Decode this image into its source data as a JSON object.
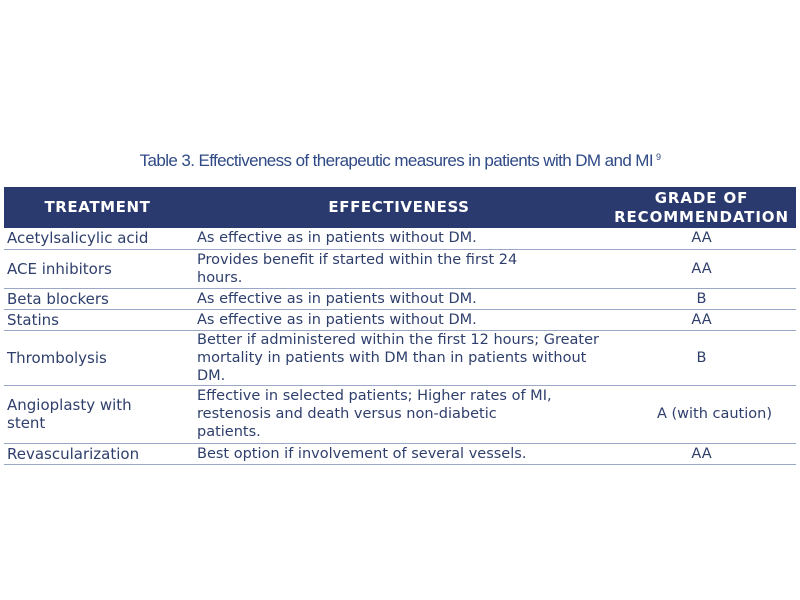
{
  "caption": {
    "text": "Table 3. Effectiveness of therapeutic measures in patients with DM and MI",
    "reference": "9"
  },
  "colors": {
    "header_bg": "#2a3a6e",
    "header_text": "#ffffff",
    "body_text": "#2f3f6c",
    "caption_text": "#2f4a86",
    "row_rule": "#9aa7c7"
  },
  "table": {
    "headers": {
      "treatment": "TREATMENT",
      "effectiveness": "EFFECTIVENESS",
      "grade": "GRADE OF\nRECOMMENDATION"
    },
    "rows": [
      {
        "treatment": "Acetylsalicylic acid",
        "effectiveness": "As effective as in patients without DM.",
        "grade": "AA"
      },
      {
        "treatment": "ACE inhibitors",
        "effectiveness": "Provides benefit if started within the first 24 hours.",
        "grade": "AA"
      },
      {
        "treatment": "Beta blockers",
        "effectiveness": "As effective as in patients without DM.",
        "grade": "B"
      },
      {
        "treatment": "Statins",
        "effectiveness": "As effective as in patients without DM.",
        "grade": "AA"
      },
      {
        "treatment": "Thrombolysis",
        "effectiveness": "Better if administered within the first 12 hours; Greater mortality in patients with DM than in patients without DM.",
        "grade": "B"
      },
      {
        "treatment": "Angioplasty with stent",
        "effectiveness": "Effective in selected patients; Higher rates of MI, restenosis and death versus non-diabetic patients.",
        "grade": "A (with caution)"
      },
      {
        "treatment": "Revascularization",
        "effectiveness": "Best option if involvement of several vessels.",
        "grade": "AA"
      }
    ]
  }
}
